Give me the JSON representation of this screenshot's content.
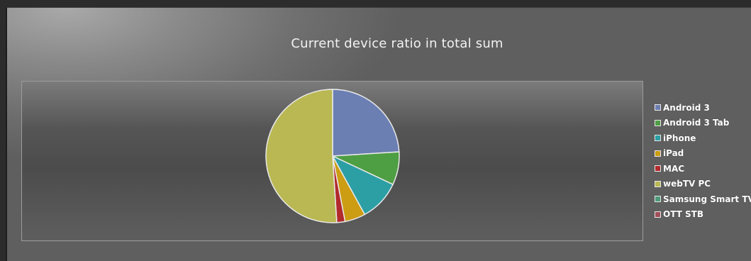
{
  "chart_data": {
    "type": "pie",
    "title": "Current device ratio in total sum",
    "legend_position": "right",
    "categories": [
      "Android 3",
      "Android 3 Tab",
      "iPhone",
      "iPad",
      "MAC",
      "webTV PC",
      "Samsung Smart TV",
      "OTT STB"
    ],
    "values": [
      24,
      8,
      10,
      5,
      2,
      51,
      0,
      0
    ],
    "colors": [
      "#6b7fb3",
      "#4e9e43",
      "#2c9fa5",
      "#cc9c12",
      "#b22a2c",
      "#b9b853",
      "#4c9a7a",
      "#a24e58"
    ]
  }
}
